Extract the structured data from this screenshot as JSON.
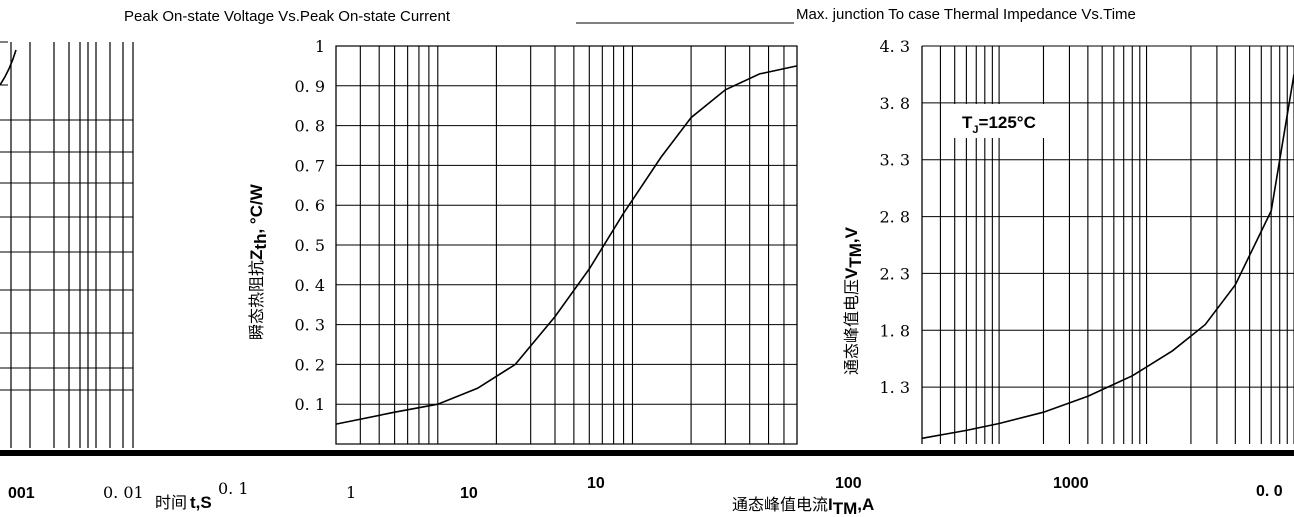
{
  "titles": {
    "left": "Peak On-state Voltage Vs.Peak On-state Current",
    "right": "Max. junction To case Thermal Impedance Vs.Time"
  },
  "left_chart_xticks": [
    "001",
    "0. 01",
    "0. 1",
    "1",
    "10"
  ],
  "left_chart_xlabel_cn": "时间",
  "left_chart_xlabel": "t,S",
  "middle_chart_ylabel_cn": "瞬态热阻抗",
  "middle_chart_ylabel": "Z",
  "middle_chart_ylabel_sub": "th",
  "middle_chart_ylabel_unit": ", °C/W",
  "right_chart_ylabel_cn": "通态峰值电压",
  "right_chart_ylabel": "V",
  "right_chart_ylabel_sub": "TM",
  "right_chart_ylabel_unit": ",V",
  "bottom_xticks": [
    "10",
    "100",
    "1000",
    "0. 0"
  ],
  "bottom_xlabel_cn": "通态峰值电流",
  "bottom_xlabel": "I",
  "bottom_xlabel_sub": "TM",
  "bottom_xlabel_unit": ",A",
  "annotation": {
    "text": "T",
    "sub": "J",
    "rest": "=125°C"
  },
  "colors": {
    "line": "#000000",
    "background": "#ffffff"
  },
  "chart_data": [
    {
      "type": "line",
      "title": "",
      "xlabel": "时间t,S",
      "ylabel": "瞬态热阻抗Zth, °C/W",
      "x_scale": "log",
      "xlim": [
        0.3,
        70
      ],
      "ylim": [
        0,
        1
      ],
      "yticks": [
        0.1,
        0.2,
        0.3,
        0.4,
        0.5,
        0.6,
        0.7,
        0.8,
        0.9,
        1
      ],
      "ytick_labels": [
        "0. 1",
        "0. 2",
        "0. 3",
        "0. 4",
        "0. 5",
        "0. 6",
        "0. 7",
        "0. 8",
        "0. 9",
        "1"
      ],
      "grid": true,
      "series": [
        {
          "x": [
            0.3,
            0.6,
            1,
            1.6,
            2.5,
            4,
            6,
            9,
            14,
            20,
            30,
            45,
            70
          ],
          "y": [
            0.05,
            0.08,
            0.1,
            0.14,
            0.2,
            0.32,
            0.44,
            0.58,
            0.72,
            0.82,
            0.89,
            0.93,
            0.95
          ]
        }
      ]
    },
    {
      "type": "line",
      "title": "Max. junction To case Thermal Impedance Vs.Time",
      "xlabel": "通态峰值电流ITM,A",
      "ylabel": "通态峰值电压VTM,V",
      "x_scale": "log",
      "xlim": [
        30,
        10000
      ],
      "ylim": [
        0.8,
        4.3
      ],
      "yticks": [
        1.3,
        1.8,
        2.3,
        2.8,
        3.3,
        3.8,
        4.3
      ],
      "ytick_labels": [
        "1. 3",
        "1. 8",
        "2. 3",
        "2. 8",
        "3. 3",
        "3. 8",
        "4. 3"
      ],
      "xticks": [
        100,
        1000
      ],
      "grid": true,
      "annotation": "TJ=125°C",
      "series": [
        {
          "x": [
            30,
            60,
            100,
            200,
            400,
            800,
            1500,
            2500,
            4000,
            7000,
            10000
          ],
          "y": [
            0.85,
            0.92,
            0.98,
            1.08,
            1.22,
            1.4,
            1.62,
            1.85,
            2.2,
            2.85,
            4.05
          ]
        }
      ]
    }
  ]
}
